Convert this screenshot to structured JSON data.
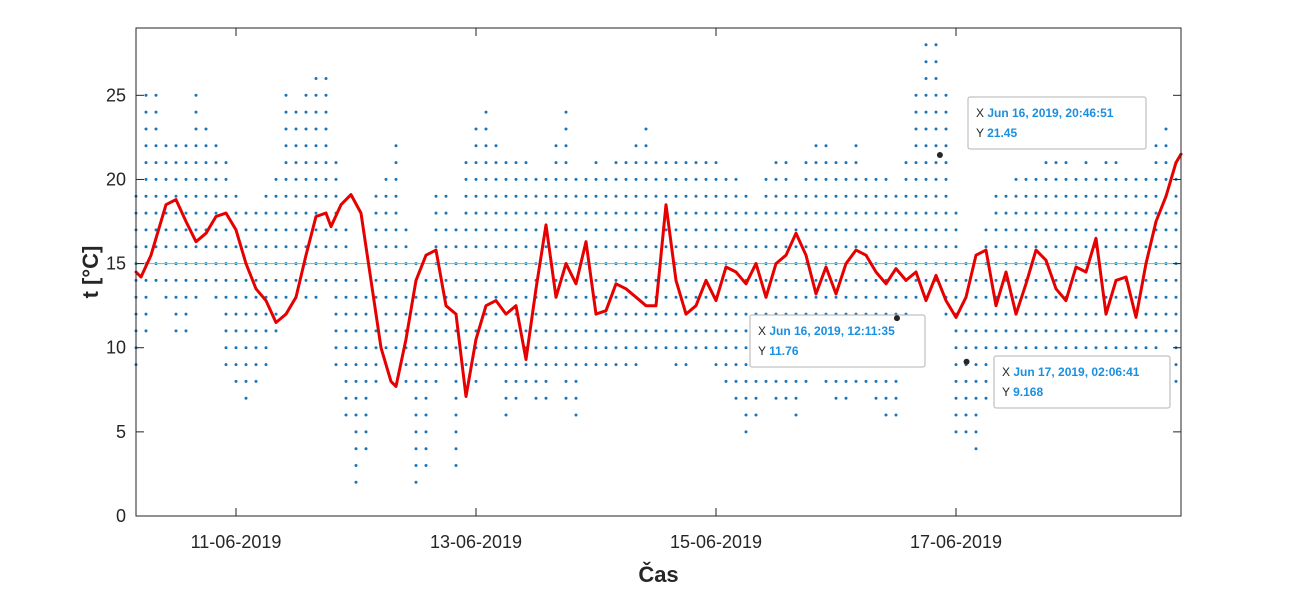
{
  "chart_data": {
    "type": "scatter",
    "title": "",
    "xlabel": "Čas",
    "ylabel": "t [°C]",
    "x_start": "2019-06-10T04:00:00",
    "x_end": "2019-06-18T21:00:00",
    "ylim": [
      0,
      29
    ],
    "yticks": [
      0,
      5,
      10,
      15,
      20,
      25
    ],
    "xticks": [
      {
        "date": "2019-06-11T00:00:00",
        "label": "11-06-2019"
      },
      {
        "date": "2019-06-13T00:00:00",
        "label": "13-06-2019"
      },
      {
        "date": "2019-06-15T00:00:00",
        "label": "15-06-2019"
      },
      {
        "date": "2019-06-17T00:00:00",
        "label": "17-06-2019"
      }
    ],
    "reference_line": {
      "y": 15,
      "color": "#7ed957"
    },
    "grid": false,
    "scatter_color": "#1b75bb",
    "line_color": "#e60000",
    "series": [
      {
        "type": "scatter-bands",
        "bands": [
          [
            "2019-06-10T04:00:00",
            9,
            19
          ],
          [
            "2019-06-10T06:00:00",
            11,
            25
          ],
          [
            "2019-06-10T08:00:00",
            14,
            25
          ],
          [
            "2019-06-10T10:00:00",
            13,
            22
          ],
          [
            "2019-06-10T12:00:00",
            11,
            22
          ],
          [
            "2019-06-10T14:00:00",
            11,
            22
          ],
          [
            "2019-06-10T16:00:00",
            13,
            25
          ],
          [
            "2019-06-10T18:00:00",
            14,
            23
          ],
          [
            "2019-06-10T20:00:00",
            13,
            22
          ],
          [
            "2019-06-10T22:00:00",
            9,
            21
          ],
          [
            "2019-06-11T00:00:00",
            8,
            19
          ],
          [
            "2019-06-11T02:00:00",
            7,
            18
          ],
          [
            "2019-06-11T04:00:00",
            8,
            18
          ],
          [
            "2019-06-11T06:00:00",
            9,
            19
          ],
          [
            "2019-06-11T08:00:00",
            11,
            20
          ],
          [
            "2019-06-11T10:00:00",
            12,
            25
          ],
          [
            "2019-06-11T12:00:00",
            13,
            24
          ],
          [
            "2019-06-11T14:00:00",
            13,
            25
          ],
          [
            "2019-06-11T16:00:00",
            13,
            26
          ],
          [
            "2019-06-11T18:00:00",
            14,
            26
          ],
          [
            "2019-06-11T20:00:00",
            9,
            21
          ],
          [
            "2019-06-11T22:00:00",
            6,
            17
          ],
          [
            "2019-06-12T00:00:00",
            2,
            15
          ],
          [
            "2019-06-12T02:00:00",
            4,
            13
          ],
          [
            "2019-06-12T04:00:00",
            8,
            19
          ],
          [
            "2019-06-12T06:00:00",
            10,
            20
          ],
          [
            "2019-06-12T08:00:00",
            10,
            22
          ],
          [
            "2019-06-12T10:00:00",
            8,
            17
          ],
          [
            "2019-06-12T12:00:00",
            2,
            15
          ],
          [
            "2019-06-12T14:00:00",
            3,
            14
          ],
          [
            "2019-06-12T16:00:00",
            8,
            19
          ],
          [
            "2019-06-12T18:00:00",
            9,
            19
          ],
          [
            "2019-06-12T20:00:00",
            3,
            17
          ],
          [
            "2019-06-12T22:00:00",
            9,
            21
          ],
          [
            "2019-06-13T00:00:00",
            8,
            23
          ],
          [
            "2019-06-13T02:00:00",
            9,
            24
          ],
          [
            "2019-06-13T04:00:00",
            9,
            22
          ],
          [
            "2019-06-13T06:00:00",
            6,
            21
          ],
          [
            "2019-06-13T08:00:00",
            7,
            21
          ],
          [
            "2019-06-13T10:00:00",
            8,
            21
          ],
          [
            "2019-06-13T12:00:00",
            7,
            20
          ],
          [
            "2019-06-13T14:00:00",
            7,
            20
          ],
          [
            "2019-06-13T16:00:00",
            9,
            22
          ],
          [
            "2019-06-13T18:00:00",
            7,
            24
          ],
          [
            "2019-06-13T20:00:00",
            6,
            20
          ],
          [
            "2019-06-13T22:00:00",
            9,
            20
          ],
          [
            "2019-06-14T00:00:00",
            9,
            21
          ],
          [
            "2019-06-14T02:00:00",
            9,
            20
          ],
          [
            "2019-06-14T04:00:00",
            9,
            21
          ],
          [
            "2019-06-14T06:00:00",
            9,
            21
          ],
          [
            "2019-06-14T08:00:00",
            9,
            22
          ],
          [
            "2019-06-14T10:00:00",
            10,
            23
          ],
          [
            "2019-06-14T12:00:00",
            10,
            21
          ],
          [
            "2019-06-14T14:00:00",
            10,
            21
          ],
          [
            "2019-06-14T16:00:00",
            9,
            21
          ],
          [
            "2019-06-14T18:00:00",
            9,
            21
          ],
          [
            "2019-06-14T20:00:00",
            10,
            21
          ],
          [
            "2019-06-14T22:00:00",
            10,
            21
          ],
          [
            "2019-06-15T00:00:00",
            9,
            21
          ],
          [
            "2019-06-15T02:00:00",
            8,
            20
          ],
          [
            "2019-06-15T04:00:00",
            7,
            20
          ],
          [
            "2019-06-15T06:00:00",
            5,
            19
          ],
          [
            "2019-06-15T08:00:00",
            6,
            18
          ],
          [
            "2019-06-15T10:00:00",
            8,
            20
          ],
          [
            "2019-06-15T12:00:00",
            7,
            21
          ],
          [
            "2019-06-15T14:00:00",
            7,
            21
          ],
          [
            "2019-06-15T16:00:00",
            6,
            19
          ],
          [
            "2019-06-15T18:00:00",
            8,
            21
          ],
          [
            "2019-06-15T20:00:00",
            9,
            22
          ],
          [
            "2019-06-15T22:00:00",
            8,
            22
          ],
          [
            "2019-06-16T00:00:00",
            7,
            21
          ],
          [
            "2019-06-16T02:00:00",
            7,
            21
          ],
          [
            "2019-06-16T04:00:00",
            8,
            22
          ],
          [
            "2019-06-16T06:00:00",
            8,
            20
          ],
          [
            "2019-06-16T08:00:00",
            7,
            20
          ],
          [
            "2019-06-16T10:00:00",
            6,
            20
          ],
          [
            "2019-06-16T12:00:00",
            6,
            19
          ],
          [
            "2019-06-16T14:00:00",
            10,
            21
          ],
          [
            "2019-06-16T16:00:00",
            13,
            25
          ],
          [
            "2019-06-16T18:00:00",
            13,
            28
          ],
          [
            "2019-06-16T20:00:00",
            14,
            28
          ],
          [
            "2019-06-16T22:00:00",
            12,
            25
          ],
          [
            "2019-06-17T00:00:00",
            5,
            18
          ],
          [
            "2019-06-17T02:00:00",
            5,
            15
          ],
          [
            "2019-06-17T04:00:00",
            4,
            14
          ],
          [
            "2019-06-17T06:00:00",
            7,
            17
          ],
          [
            "2019-06-17T08:00:00",
            9,
            19
          ],
          [
            "2019-06-17T10:00:00",
            9,
            19
          ],
          [
            "2019-06-17T12:00:00",
            9,
            20
          ],
          [
            "2019-06-17T14:00:00",
            9,
            20
          ],
          [
            "2019-06-17T16:00:00",
            9,
            20
          ],
          [
            "2019-06-17T18:00:00",
            10,
            21
          ],
          [
            "2019-06-17T20:00:00",
            9,
            21
          ],
          [
            "2019-06-17T22:00:00",
            9,
            21
          ],
          [
            "2019-06-18T00:00:00",
            8,
            20
          ],
          [
            "2019-06-18T02:00:00",
            8,
            21
          ],
          [
            "2019-06-18T04:00:00",
            9,
            20
          ],
          [
            "2019-06-18T06:00:00",
            9,
            22
          ],
          [
            "2019-06-18T08:00:00",
            9,
            22
          ],
          [
            "2019-06-18T10:00:00",
            9,
            20
          ],
          [
            "2019-06-18T12:00:00",
            9,
            20
          ],
          [
            "2019-06-18T14:00:00",
            8,
            20
          ],
          [
            "2019-06-18T16:00:00",
            10,
            22
          ],
          [
            "2019-06-18T18:00:00",
            11,
            23
          ],
          [
            "2019-06-18T20:00:00",
            8,
            21
          ]
        ]
      },
      {
        "type": "line",
        "points": [
          [
            "2019-06-10T04:00:00",
            14.5
          ],
          [
            "2019-06-10T05:00:00",
            14.2
          ],
          [
            "2019-06-10T07:00:00",
            15.5
          ],
          [
            "2019-06-10T10:00:00",
            18.5
          ],
          [
            "2019-06-10T12:00:00",
            18.8
          ],
          [
            "2019-06-10T14:00:00",
            17.5
          ],
          [
            "2019-06-10T16:00:00",
            16.3
          ],
          [
            "2019-06-10T18:00:00",
            16.8
          ],
          [
            "2019-06-10T20:00:00",
            17.8
          ],
          [
            "2019-06-10T22:00:00",
            18.0
          ],
          [
            "2019-06-11T00:00:00",
            17.0
          ],
          [
            "2019-06-11T02:00:00",
            15.0
          ],
          [
            "2019-06-11T04:00:00",
            13.5
          ],
          [
            "2019-06-11T06:00:00",
            12.8
          ],
          [
            "2019-06-11T08:00:00",
            11.5
          ],
          [
            "2019-06-11T10:00:00",
            12.0
          ],
          [
            "2019-06-11T12:00:00",
            13.0
          ],
          [
            "2019-06-11T14:00:00",
            15.5
          ],
          [
            "2019-06-11T16:00:00",
            17.8
          ],
          [
            "2019-06-11T18:00:00",
            18.0
          ],
          [
            "2019-06-11T19:00:00",
            17.2
          ],
          [
            "2019-06-11T21:00:00",
            18.5
          ],
          [
            "2019-06-11T23:00:00",
            19.1
          ],
          [
            "2019-06-12T01:00:00",
            18.0
          ],
          [
            "2019-06-12T03:00:00",
            14.0
          ],
          [
            "2019-06-12T05:00:00",
            10.0
          ],
          [
            "2019-06-12T07:00:00",
            8.0
          ],
          [
            "2019-06-12T08:00:00",
            7.7
          ],
          [
            "2019-06-12T10:00:00",
            10.5
          ],
          [
            "2019-06-12T12:00:00",
            14.0
          ],
          [
            "2019-06-12T14:00:00",
            15.5
          ],
          [
            "2019-06-12T16:00:00",
            15.8
          ],
          [
            "2019-06-12T18:00:00",
            12.5
          ],
          [
            "2019-06-12T20:00:00",
            12.0
          ],
          [
            "2019-06-12T22:00:00",
            7.1
          ],
          [
            "2019-06-13T00:00:00",
            10.5
          ],
          [
            "2019-06-13T02:00:00",
            12.5
          ],
          [
            "2019-06-13T04:00:00",
            12.8
          ],
          [
            "2019-06-13T06:00:00",
            12.0
          ],
          [
            "2019-06-13T08:00:00",
            12.5
          ],
          [
            "2019-06-13T10:00:00",
            9.3
          ],
          [
            "2019-06-13T12:00:00",
            13.5
          ],
          [
            "2019-06-13T14:00:00",
            17.3
          ],
          [
            "2019-06-13T16:00:00",
            13.0
          ],
          [
            "2019-06-13T18:00:00",
            15.0
          ],
          [
            "2019-06-13T20:00:00",
            13.8
          ],
          [
            "2019-06-13T22:00:00",
            16.3
          ],
          [
            "2019-06-14T00:00:00",
            12.0
          ],
          [
            "2019-06-14T02:00:00",
            12.2
          ],
          [
            "2019-06-14T04:00:00",
            13.8
          ],
          [
            "2019-06-14T06:00:00",
            13.5
          ],
          [
            "2019-06-14T08:00:00",
            13.0
          ],
          [
            "2019-06-14T10:00:00",
            12.5
          ],
          [
            "2019-06-14T12:00:00",
            12.5
          ],
          [
            "2019-06-14T14:00:00",
            18.5
          ],
          [
            "2019-06-14T16:00:00",
            14.0
          ],
          [
            "2019-06-14T18:00:00",
            12.0
          ],
          [
            "2019-06-14T20:00:00",
            12.5
          ],
          [
            "2019-06-14T22:00:00",
            14.0
          ],
          [
            "2019-06-15T00:00:00",
            12.8
          ],
          [
            "2019-06-15T02:00:00",
            14.8
          ],
          [
            "2019-06-15T04:00:00",
            14.5
          ],
          [
            "2019-06-15T06:00:00",
            13.8
          ],
          [
            "2019-06-15T08:00:00",
            15.0
          ],
          [
            "2019-06-15T10:00:00",
            13.0
          ],
          [
            "2019-06-15T12:00:00",
            15.0
          ],
          [
            "2019-06-15T14:00:00",
            15.5
          ],
          [
            "2019-06-15T16:00:00",
            16.8
          ],
          [
            "2019-06-15T18:00:00",
            15.5
          ],
          [
            "2019-06-15T20:00:00",
            13.2
          ],
          [
            "2019-06-15T22:00:00",
            14.8
          ],
          [
            "2019-06-16T00:00:00",
            13.2
          ],
          [
            "2019-06-16T02:00:00",
            15.0
          ],
          [
            "2019-06-16T04:00:00",
            15.8
          ],
          [
            "2019-06-16T06:00:00",
            15.5
          ],
          [
            "2019-06-16T08:00:00",
            14.5
          ],
          [
            "2019-06-16T10:00:00",
            13.8
          ],
          [
            "2019-06-16T12:00:00",
            14.7
          ],
          [
            "2019-06-16T14:00:00",
            14.0
          ],
          [
            "2019-06-16T16:00:00",
            14.5
          ],
          [
            "2019-06-16T18:00:00",
            12.8
          ],
          [
            "2019-06-16T20:00:00",
            14.3
          ],
          [
            "2019-06-16T22:00:00",
            12.8
          ],
          [
            "2019-06-17T00:00:00",
            11.8
          ],
          [
            "2019-06-17T02:00:00",
            13.0
          ],
          [
            "2019-06-17T04:00:00",
            15.5
          ],
          [
            "2019-06-17T06:00:00",
            15.8
          ],
          [
            "2019-06-17T08:00:00",
            12.5
          ],
          [
            "2019-06-17T10:00:00",
            14.5
          ],
          [
            "2019-06-17T12:00:00",
            12.0
          ],
          [
            "2019-06-17T14:00:00",
            13.8
          ],
          [
            "2019-06-17T16:00:00",
            15.8
          ],
          [
            "2019-06-17T18:00:00",
            15.2
          ],
          [
            "2019-06-17T20:00:00",
            13.5
          ],
          [
            "2019-06-17T22:00:00",
            12.8
          ],
          [
            "2019-06-18T00:00:00",
            14.8
          ],
          [
            "2019-06-18T02:00:00",
            14.5
          ],
          [
            "2019-06-18T04:00:00",
            16.5
          ],
          [
            "2019-06-18T06:00:00",
            12.0
          ],
          [
            "2019-06-18T08:00:00",
            14.0
          ],
          [
            "2019-06-18T10:00:00",
            14.2
          ],
          [
            "2019-06-18T12:00:00",
            11.8
          ],
          [
            "2019-06-18T14:00:00",
            15.0
          ],
          [
            "2019-06-18T16:00:00",
            17.5
          ],
          [
            "2019-06-18T18:00:00",
            19.0
          ],
          [
            "2019-06-18T20:00:00",
            21.0
          ],
          [
            "2019-06-18T21:00:00",
            21.5
          ]
        ]
      }
    ],
    "datatips": [
      {
        "x_label": "X",
        "x_value": "Jun 16, 2019, 12:11:35",
        "y_label": "Y",
        "y_value": "11.76",
        "x": "2019-06-16T12:11:35",
        "y": 11.76
      },
      {
        "x_label": "X",
        "x_value": "Jun 16, 2019, 20:46:51",
        "y_label": "Y",
        "y_value": "21.45",
        "x": "2019-06-16T20:46:51",
        "y": 21.45
      },
      {
        "x_label": "X",
        "x_value": "Jun 17, 2019, 02:06:41",
        "y_label": "Y",
        "y_value": "9.168",
        "x": "2019-06-17T02:06:41",
        "y": 9.168
      }
    ]
  }
}
